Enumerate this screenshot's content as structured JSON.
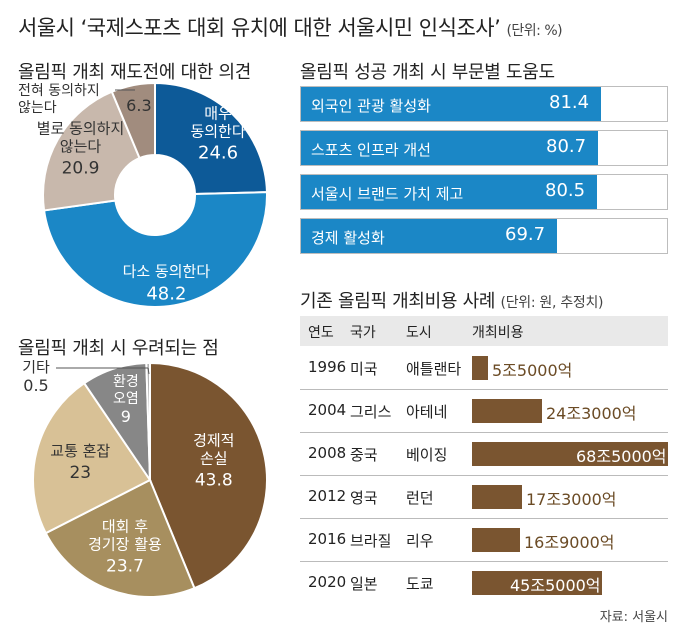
{
  "header": {
    "title": "서울시 ‘국제스포츠 대회 유치에 대한 서울시민 인식조사’",
    "unit": "(단위: %)"
  },
  "source": "자료: 서울시",
  "colors": {
    "strong_agree": "#0d5a98",
    "agree": "#1b87c6",
    "disagree": "#c8b8ac",
    "strong_disagree": "#a18c7e",
    "economic_loss": "#7a5530",
    "facility": "#a78f5f",
    "traffic": "#d8c196",
    "environment": "#878787",
    "etc": "#b3b3b3",
    "help_bar": "#1b87c6",
    "cost_bar": "#7a5530"
  },
  "chart_data": [
    {
      "type": "pie",
      "title": "올림픽 개최 재도전에 대한 의견",
      "donut": true,
      "slices": [
        {
          "label": "매우 동의한다",
          "value": 24.6
        },
        {
          "label": "다소 동의한다",
          "value": 48.2
        },
        {
          "label": "별로 동의하지 않는다",
          "value": 20.9
        },
        {
          "label": "전혀 동의하지 않는다",
          "value": 6.3
        }
      ]
    },
    {
      "type": "pie",
      "title": "올림픽 개최 시 우려되는 점",
      "slices": [
        {
          "label": "경제적 손실",
          "value": 43.8
        },
        {
          "label": "대회 후 경기장 활용",
          "value": 23.7
        },
        {
          "label": "교통 혼잡",
          "value": 23
        },
        {
          "label": "환경 오염",
          "value": 9
        },
        {
          "label": "기타",
          "value": 0.5
        }
      ]
    },
    {
      "type": "bar",
      "orientation": "horizontal",
      "title": "올림픽 성공 개최 시 부문별 도움도",
      "xlim": [
        0,
        100
      ],
      "categories": [
        "외국인 관광 활성화",
        "스포츠 인프라 개선",
        "서울시 브랜드 가치 제고",
        "경제 활성화"
      ],
      "values": [
        81.4,
        80.7,
        80.5,
        69.7
      ],
      "value_labels": [
        "81.4",
        "80.7",
        "80.5",
        "69.7"
      ]
    },
    {
      "type": "table",
      "title": "기존 올림픽 개최비용 사례",
      "unit": "(단위: 원, 추정치)",
      "columns": [
        "연도",
        "국가",
        "도시",
        "개최비용"
      ],
      "rows": [
        {
          "year": "1996",
          "country": "미국",
          "city": "애틀랜타",
          "cost": "5조5000억",
          "value": 5.5
        },
        {
          "year": "2004",
          "country": "그리스",
          "city": "아테네",
          "cost": "24조3000억",
          "value": 24.3
        },
        {
          "year": "2008",
          "country": "중국",
          "city": "베이징",
          "cost": "68조5000억",
          "value": 68.5
        },
        {
          "year": "2012",
          "country": "영국",
          "city": "런던",
          "cost": "17조3000억",
          "value": 17.3
        },
        {
          "year": "2016",
          "country": "브라질",
          "city": "리우",
          "cost": "16조9000억",
          "value": 16.9
        },
        {
          "year": "2020",
          "country": "일본",
          "city": "도쿄",
          "cost": "45조5000억",
          "value": 45.5
        }
      ]
    }
  ]
}
